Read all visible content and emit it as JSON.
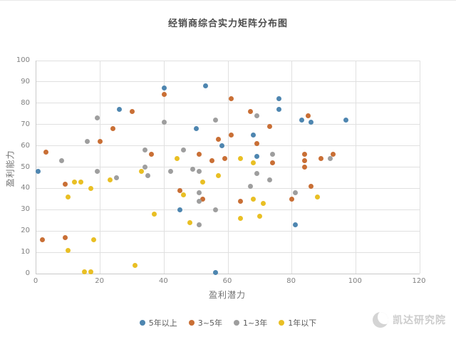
{
  "page": {
    "watermark": {
      "icon": "crescent-logo",
      "text": "凯达研究院"
    }
  },
  "chart_data": {
    "type": "scatter",
    "title": "经销商综合实力矩阵分布图",
    "xlabel": "盈利潜力",
    "ylabel": "盈利能力",
    "xlim": [
      0,
      120
    ],
    "xtick_step": 20,
    "ylim": [
      0,
      100
    ],
    "ytick_step": 10,
    "grid": true,
    "legend_position": "bottom",
    "series": [
      {
        "name": "5年以上",
        "color": "#4e86b0",
        "points": [
          [
            0.5,
            48
          ],
          [
            26,
            77
          ],
          [
            40,
            87
          ],
          [
            45,
            30
          ],
          [
            50,
            68
          ],
          [
            53,
            88
          ],
          [
            56,
            0.5
          ],
          [
            58,
            60
          ],
          [
            68,
            65
          ],
          [
            69,
            55
          ],
          [
            76,
            77
          ],
          [
            76,
            82
          ],
          [
            81,
            23
          ],
          [
            83,
            72
          ],
          [
            86,
            71
          ],
          [
            97,
            72
          ]
        ]
      },
      {
        "name": "3~5年",
        "color": "#c96f35",
        "points": [
          [
            2,
            16
          ],
          [
            3,
            57
          ],
          [
            9,
            17
          ],
          [
            9,
            42
          ],
          [
            20,
            62
          ],
          [
            24,
            68
          ],
          [
            30,
            76
          ],
          [
            36,
            56
          ],
          [
            40,
            84
          ],
          [
            45,
            39
          ],
          [
            51,
            56
          ],
          [
            52,
            35
          ],
          [
            55,
            53
          ],
          [
            57,
            63
          ],
          [
            59,
            54
          ],
          [
            61,
            65
          ],
          [
            61,
            82
          ],
          [
            64,
            34
          ],
          [
            67,
            76
          ],
          [
            69,
            61
          ],
          [
            73,
            69
          ],
          [
            74,
            52
          ],
          [
            80,
            35
          ],
          [
            84,
            50
          ],
          [
            84,
            53
          ],
          [
            84,
            56
          ],
          [
            85,
            74
          ],
          [
            86,
            41
          ],
          [
            89,
            54
          ],
          [
            93,
            56
          ]
        ]
      },
      {
        "name": "1~3年",
        "color": "#9e9e9e",
        "points": [
          [
            8,
            53
          ],
          [
            16,
            62
          ],
          [
            19,
            48
          ],
          [
            19,
            73
          ],
          [
            25,
            45
          ],
          [
            34,
            50
          ],
          [
            34,
            58
          ],
          [
            35,
            46
          ],
          [
            40,
            71
          ],
          [
            42,
            48
          ],
          [
            46,
            58
          ],
          [
            49,
            49
          ],
          [
            51,
            23
          ],
          [
            51,
            34
          ],
          [
            51,
            38
          ],
          [
            51,
            48
          ],
          [
            56,
            30
          ],
          [
            56,
            72
          ],
          [
            67,
            41
          ],
          [
            69,
            47
          ],
          [
            69,
            74
          ],
          [
            73,
            44
          ],
          [
            74,
            56
          ],
          [
            81,
            38
          ],
          [
            92,
            54
          ]
        ]
      },
      {
        "name": "1年以下",
        "color": "#e9bf24",
        "points": [
          [
            10,
            11
          ],
          [
            10,
            36
          ],
          [
            12,
            43
          ],
          [
            14,
            43
          ],
          [
            15,
            1
          ],
          [
            17,
            1
          ],
          [
            17,
            40
          ],
          [
            18,
            16
          ],
          [
            23,
            44
          ],
          [
            31,
            4
          ],
          [
            33,
            48
          ],
          [
            37,
            28
          ],
          [
            44,
            54
          ],
          [
            46,
            37
          ],
          [
            48,
            24
          ],
          [
            52,
            43
          ],
          [
            57,
            46
          ],
          [
            64,
            26
          ],
          [
            64,
            54
          ],
          [
            68,
            35
          ],
          [
            68,
            52
          ],
          [
            70,
            27
          ],
          [
            71,
            33
          ],
          [
            88,
            36
          ]
        ]
      }
    ]
  }
}
